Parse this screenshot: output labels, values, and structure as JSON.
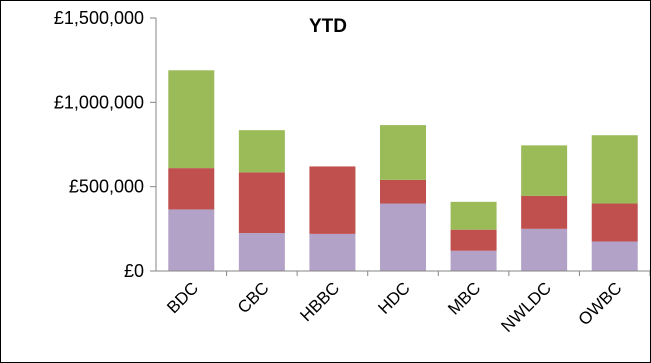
{
  "chart_data": {
    "type": "bar",
    "stacked": true,
    "title": "YTD",
    "xlabel": "",
    "ylabel": "",
    "ylim": [
      0,
      1500000
    ],
    "yticks": [
      "£0",
      "£500,000",
      "£1,000,000",
      "£1,500,000"
    ],
    "ytick_values": [
      0,
      500000,
      1000000,
      1500000
    ],
    "grid": false,
    "legend": "none",
    "categories": [
      "BDC",
      "CBC",
      "HBBC",
      "HDC",
      "MBC",
      "NWLDC",
      "OWBC"
    ],
    "series": [
      {
        "values": [
          365000,
          225000,
          220000,
          400000,
          120000,
          250000,
          175000
        ],
        "color": "#b3a2c7"
      },
      {
        "values": [
          245000,
          360000,
          400000,
          140000,
          125000,
          195000,
          225000
        ],
        "color": "#c0504d"
      },
      {
        "values": [
          580000,
          250000,
          0,
          325000,
          165000,
          300000,
          405000
        ],
        "color": "#9bbb59"
      }
    ]
  }
}
